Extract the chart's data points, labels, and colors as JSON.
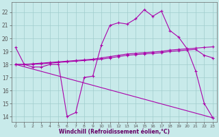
{
  "bg_color": "#c8eaea",
  "grid_color": "#a0cccc",
  "line_color": "#aa00aa",
  "marker": "+",
  "xlabel": "Windchill (Refroidissement éolien,°C)",
  "xlim": [
    -0.5,
    23.5
  ],
  "ylim": [
    13.6,
    22.8
  ],
  "yticks": [
    14,
    15,
    16,
    17,
    18,
    19,
    20,
    21,
    22
  ],
  "xticks": [
    0,
    1,
    2,
    3,
    4,
    5,
    6,
    7,
    8,
    9,
    10,
    11,
    12,
    13,
    14,
    15,
    16,
    17,
    18,
    19,
    20,
    21,
    22,
    23
  ],
  "series1_x": [
    0,
    1,
    2,
    3,
    4,
    5,
    6,
    7,
    8,
    9,
    10,
    11,
    12,
    13,
    14,
    15,
    16,
    17,
    18,
    19,
    20,
    21,
    22,
    23
  ],
  "series1_y": [
    19.3,
    18.0,
    17.8,
    17.8,
    18.0,
    18.0,
    14.0,
    14.3,
    17.0,
    17.1,
    19.5,
    21.0,
    21.2,
    21.1,
    21.5,
    22.2,
    21.7,
    22.1,
    20.6,
    20.1,
    19.2,
    17.5,
    15.0,
    13.9
  ],
  "series2_x": [
    0,
    23
  ],
  "series2_y": [
    18.0,
    13.9
  ],
  "series3_x": [
    0,
    1,
    2,
    3,
    4,
    5,
    6,
    7,
    8,
    9,
    10,
    11,
    12,
    13,
    14,
    15,
    16,
    17,
    18,
    19,
    20,
    21,
    22,
    23
  ],
  "series3_y": [
    18.0,
    18.0,
    18.05,
    18.1,
    18.15,
    18.2,
    18.25,
    18.3,
    18.35,
    18.4,
    18.5,
    18.6,
    18.7,
    18.8,
    18.85,
    18.9,
    18.95,
    19.0,
    19.1,
    19.15,
    19.2,
    19.25,
    19.3,
    19.35
  ],
  "series4_x": [
    0,
    1,
    2,
    3,
    4,
    5,
    6,
    7,
    8,
    9,
    10,
    11,
    12,
    13,
    14,
    15,
    16,
    17,
    18,
    19,
    20,
    21,
    22,
    23
  ],
  "series4_y": [
    18.0,
    18.0,
    18.02,
    18.05,
    18.1,
    18.15,
    18.2,
    18.25,
    18.3,
    18.35,
    18.4,
    18.5,
    18.6,
    18.7,
    18.75,
    18.8,
    18.85,
    18.9,
    19.0,
    19.05,
    19.1,
    19.15,
    18.7,
    18.5
  ]
}
